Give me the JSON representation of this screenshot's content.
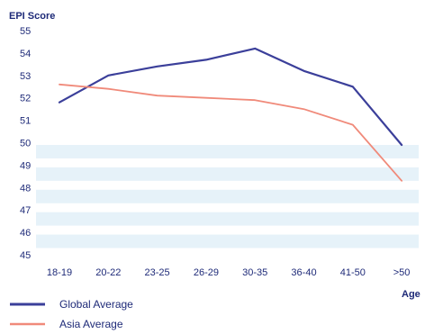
{
  "chart_data": {
    "type": "line",
    "ylabel": "EPI Score",
    "xlabel": "Age",
    "categories": [
      "18-19",
      "20-22",
      "23-25",
      "26-29",
      "30-35",
      "36-40",
      "41-50",
      ">50"
    ],
    "yticks": [
      45,
      46,
      47,
      48,
      49,
      50,
      51,
      52,
      53,
      54,
      55
    ],
    "ylim": [
      45,
      55
    ],
    "grid": "horizontal bands",
    "legend_position": "bottom-left",
    "series": [
      {
        "name": "Global Average",
        "color": "#3b3f9a",
        "values": [
          51.8,
          53.0,
          53.4,
          53.7,
          54.2,
          53.2,
          52.5,
          49.9
        ]
      },
      {
        "name": "Asia Average",
        "color": "#f08a7a",
        "values": [
          52.6,
          52.4,
          52.1,
          52.0,
          51.9,
          51.5,
          50.8,
          48.3
        ]
      }
    ]
  },
  "colors": {
    "axis_text": "#1e2a78",
    "band": "#e6f2f9"
  }
}
